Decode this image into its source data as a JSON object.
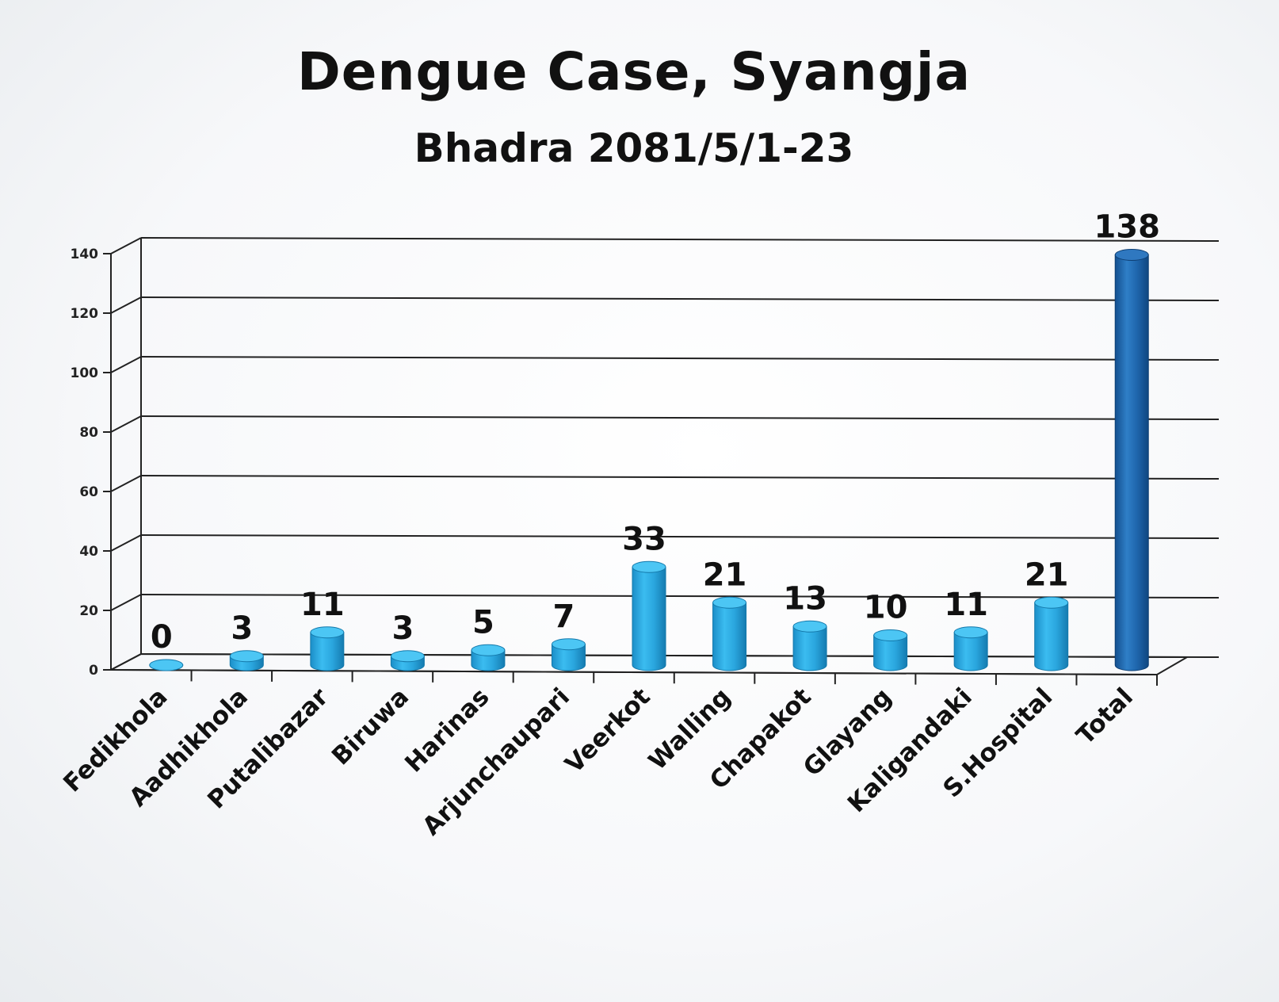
{
  "chart_data": {
    "type": "bar",
    "title": "Dengue Case, Syangja",
    "subtitle": "Bhadra 2081/5/1-23",
    "categories": [
      "Fedikhola",
      "Aadhikhola",
      "Putalibazar",
      "Biruwa",
      "Harinas",
      "Arjunchaupari",
      "Veerkot",
      "Walling",
      "Chapakot",
      "Glayang",
      "Kaligandaki",
      "S.Hospital",
      "Total"
    ],
    "values": [
      0,
      3,
      11,
      3,
      5,
      7,
      33,
      21,
      13,
      10,
      11,
      21,
      138
    ],
    "ylim": [
      0,
      140
    ],
    "yticks": [
      0,
      20,
      40,
      60,
      80,
      100,
      120,
      140
    ],
    "grid": true,
    "style": "3d-cylinder",
    "colors": {
      "bar": "#29a9e0",
      "bar_dark": "#1b7fb6",
      "total_bar": "#1e67ad"
    }
  }
}
